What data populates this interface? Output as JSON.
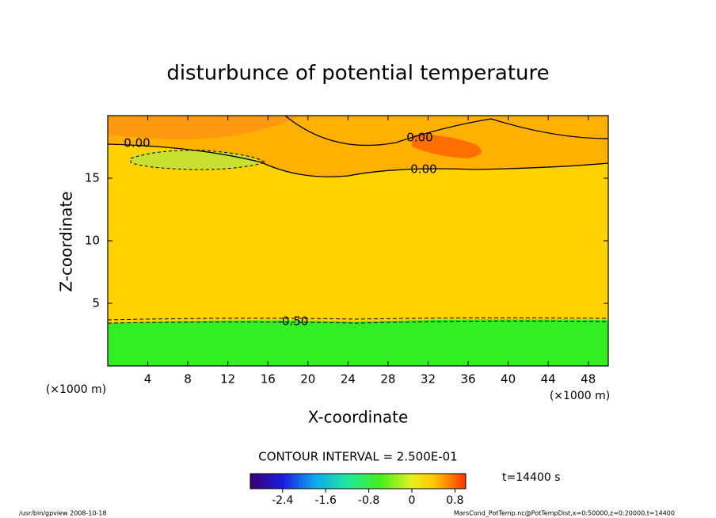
{
  "chart_data": {
    "type": "contour",
    "title": "disturbunce of potential temperature",
    "xlabel": "X-coordinate",
    "ylabel": "Z-coordinate",
    "x_unit_left": "(×1000 m)",
    "x_unit_right": "(×1000 m)",
    "xlim": [
      0,
      50
    ],
    "ylim": [
      0,
      20
    ],
    "xticks": [
      4,
      8,
      12,
      16,
      20,
      24,
      28,
      32,
      36,
      40,
      44,
      48
    ],
    "yticks": [
      5,
      10,
      15
    ],
    "contour_labels": [
      {
        "value": 0,
        "label": "0.00"
      },
      {
        "value": 0,
        "label": "0.00"
      },
      {
        "value": 0,
        "label": "0.00"
      },
      {
        "value": -0.5,
        "label": "-0.50"
      }
    ],
    "contour_interval": "CONTOUR INTERVAL = 2.500E-01",
    "colorbar_lim": [
      -3,
      1
    ],
    "colorbar_ticks": [
      -2.4,
      -1.6,
      -0.8,
      0,
      0.8
    ],
    "time_label": "t=14400 s",
    "footer_left": "/usr/bin/gpview   2008-10-18",
    "footer_right": "MarsCond_PotTemp.nc@PotTempDist,x=0:50000,z=0:20000,t=14400"
  }
}
